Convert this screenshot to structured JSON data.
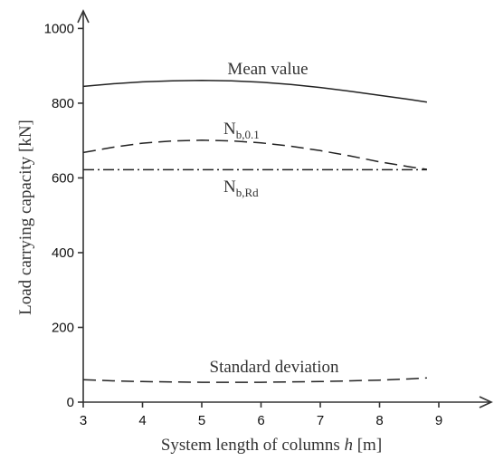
{
  "chart_data": {
    "type": "line",
    "xlabel_main": "System length of columns ",
    "xlabel_var": "h",
    "xlabel_unit": " [m]",
    "ylabel": "Load carrying capacity  [kN]",
    "xlim": [
      3,
      10
    ],
    "ylim": [
      0,
      1000
    ],
    "x_ticks": [
      "3",
      "4",
      "5",
      "6",
      "7",
      "8",
      "9"
    ],
    "y_ticks": [
      "0",
      "200",
      "400",
      "600",
      "800",
      "1000"
    ],
    "grid": false,
    "series": [
      {
        "name": "Mean value",
        "style": "solid",
        "x": [
          3,
          3.5,
          4,
          4.5,
          5,
          5.5,
          6,
          6.5,
          7,
          7.5,
          8,
          8.5,
          8.8
        ],
        "y": [
          845,
          852,
          857,
          860,
          861,
          860,
          856,
          850,
          842,
          832,
          821,
          810,
          803
        ]
      },
      {
        "name": "N_b,0.1",
        "label_main": "N",
        "label_sub": "b,0.1",
        "style": "dashed",
        "x": [
          3,
          3.5,
          4,
          4.5,
          5,
          5.5,
          6,
          6.5,
          7,
          7.5,
          8,
          8.5,
          8.8
        ],
        "y": [
          668,
          682,
          693,
          699,
          701,
          699,
          694,
          685,
          673,
          659,
          643,
          630,
          623
        ]
      },
      {
        "name": "N_b,Rd",
        "label_main": "N",
        "label_sub": "b,Rd",
        "style": "dashdot",
        "x": [
          3,
          8.8
        ],
        "y": [
          622,
          622
        ]
      },
      {
        "name": "Standard deviation",
        "style": "dashed",
        "x": [
          3,
          3.5,
          4,
          4.5,
          5,
          5.5,
          6,
          6.5,
          7,
          7.5,
          8,
          8.5,
          8.8
        ],
        "y": [
          60,
          57,
          55,
          54,
          53,
          53,
          53,
          54,
          55,
          57,
          59,
          62,
          65
        ]
      }
    ]
  }
}
